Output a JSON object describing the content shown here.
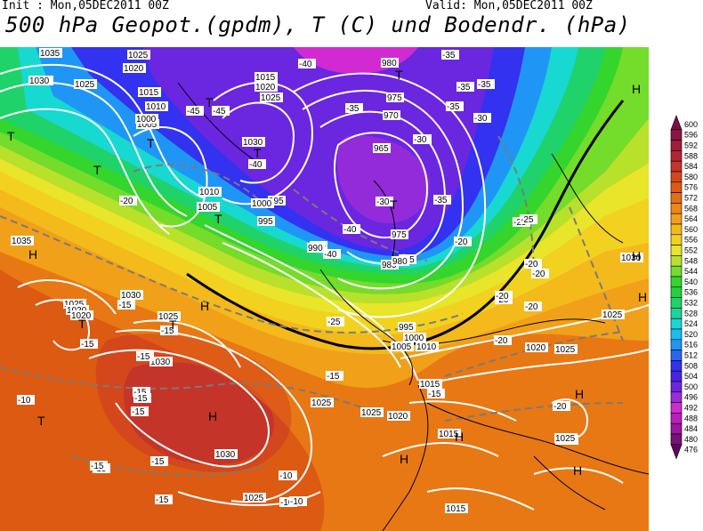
{
  "header": {
    "init": "Init : Mon,05DEC2011 00Z",
    "valid": "Valid: Mon,05DEC2011 00Z",
    "title": "500 hPa Geopot.(gpdm), T (C) und Bodendr. (hPa)"
  },
  "colors": {
    "v476": "#5a0a5a",
    "v480": "#7a107a",
    "v484": "#9b179b",
    "v488": "#bb1dbb",
    "v492": "#d22ad2",
    "v496": "#9a2dd9",
    "v500": "#6b26e0",
    "v504": "#4a22e6",
    "v508": "#3232f0",
    "v512": "#2a64f2",
    "v516": "#1f96f5",
    "v520": "#19bdf2",
    "v524": "#18d8d2",
    "v528": "#19d69c",
    "v532": "#1fd36a",
    "v536": "#23d23c",
    "v540": "#34d52c",
    "v544": "#74dc2b",
    "v548": "#b8e12b",
    "v552": "#e8e52a",
    "v556": "#f3d21f",
    "v560": "#f4b91b",
    "v564": "#f1a019",
    "v568": "#ec8616",
    "v572": "#e66e14",
    "v576": "#dd5a12",
    "v580": "#d4471c",
    "v584": "#c53429",
    "v588": "#b22633",
    "v592": "#9f1c3c",
    "v596": "#8c1443",
    "v600": "#7b0d46"
  },
  "scale": {
    "labels": [
      "600",
      "596",
      "592",
      "588",
      "584",
      "580",
      "576",
      "572",
      "568",
      "564",
      "560",
      "556",
      "552",
      "548",
      "544",
      "540",
      "536",
      "532",
      "528",
      "524",
      "520",
      "516",
      "512",
      "508",
      "504",
      "500",
      "496",
      "492",
      "488",
      "484",
      "480",
      "476"
    ]
  },
  "pressure_labels": [
    "1035",
    "1030",
    "1025",
    "1020",
    "1015",
    "1010",
    "1005",
    "1000",
    "995",
    "990",
    "985",
    "980",
    "975",
    "970",
    "965",
    "1015",
    "1020",
    "1025",
    "1030",
    "1010",
    "1005",
    "1000",
    "995",
    "990",
    "985",
    "980",
    "975",
    "1035",
    "1030",
    "1025",
    "1020",
    "1025",
    "1030",
    "1025",
    "1030",
    "1025",
    "1020",
    "1015",
    "1010",
    "1005",
    "1000",
    "995",
    "1025",
    "1020",
    "1015",
    "1025",
    "1020",
    "1025",
    "1015",
    "1030",
    "1025",
    "1030",
    "1025",
    "1025"
  ],
  "temp_labels": [
    "-45",
    "-40",
    "-40",
    "-45",
    "-35",
    "-35",
    "-35",
    "-30",
    "-30",
    "-35",
    "-35",
    "-25",
    "-30",
    "-40",
    "-40",
    "-35",
    "-30",
    "-25",
    "-25",
    "-20",
    "-20",
    "-20",
    "-20",
    "-20",
    "-20",
    "-15",
    "-15",
    "-15",
    "-15",
    "-15",
    "-15",
    "-15",
    "-15",
    "-15",
    "-15",
    "-15",
    "-10",
    "-10",
    "-10",
    "-10",
    "-20",
    "-20",
    "-20",
    "-15",
    "-15",
    "-10"
  ],
  "pressure_systems": {
    "highs": [
      "H",
      "H",
      "H",
      "H",
      "H",
      "H",
      "H",
      "H",
      "H",
      "H"
    ],
    "lows": [
      "T",
      "T",
      "T",
      "T",
      "T",
      "T",
      "T",
      "T",
      "T",
      "T",
      "T"
    ]
  }
}
